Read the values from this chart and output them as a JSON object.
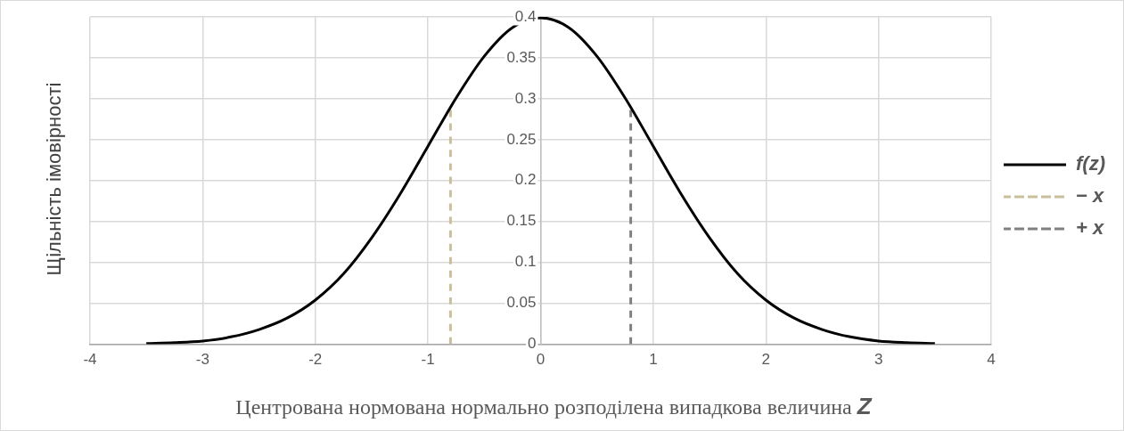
{
  "chart_data": {
    "type": "line",
    "xlabel": "Центрована нормована нормально розподілена випадкова величина Z",
    "ylabel": "Щільність імовірності",
    "xlim": [
      -4,
      4
    ],
    "xticks": [
      -4,
      -3,
      -2,
      -1,
      0,
      1,
      2,
      3,
      4
    ],
    "ylim": [
      0,
      0.4
    ],
    "yticks": [
      0,
      0.05,
      0.1,
      0.15,
      0.2,
      0.25,
      0.3,
      0.35,
      0.4
    ],
    "grid": true,
    "legend": "right",
    "marker": "none",
    "series": [
      {
        "name": "f(z)",
        "color": "#000000",
        "line_style": "solid",
        "x": [
          -3.5,
          -3.25,
          -3,
          -2.75,
          -2.5,
          -2.25,
          -2,
          -1.75,
          -1.5,
          -1.25,
          -1,
          -0.75,
          -0.5,
          -0.25,
          0,
          0.25,
          0.5,
          0.75,
          1,
          1.25,
          1.5,
          1.75,
          2,
          2.25,
          2.5,
          2.75,
          3,
          3.25,
          3.5
        ],
        "values": [
          0.001,
          0.002,
          0.004,
          0.009,
          0.018,
          0.032,
          0.054,
          0.086,
          0.13,
          0.183,
          0.242,
          0.301,
          0.352,
          0.387,
          0.399,
          0.387,
          0.352,
          0.301,
          0.242,
          0.183,
          0.13,
          0.086,
          0.054,
          0.032,
          0.018,
          0.009,
          0.004,
          0.002,
          0.001
        ]
      },
      {
        "name": "− x",
        "color": "#c9bf9a",
        "line_style": "dashed",
        "x": [
          -0.8,
          -0.8
        ],
        "values": [
          0,
          0.29
        ]
      },
      {
        "name": "+ x",
        "color": "#808080",
        "line_style": "dashed",
        "x": [
          0.8,
          0.8
        ],
        "values": [
          0,
          0.29
        ]
      }
    ]
  }
}
